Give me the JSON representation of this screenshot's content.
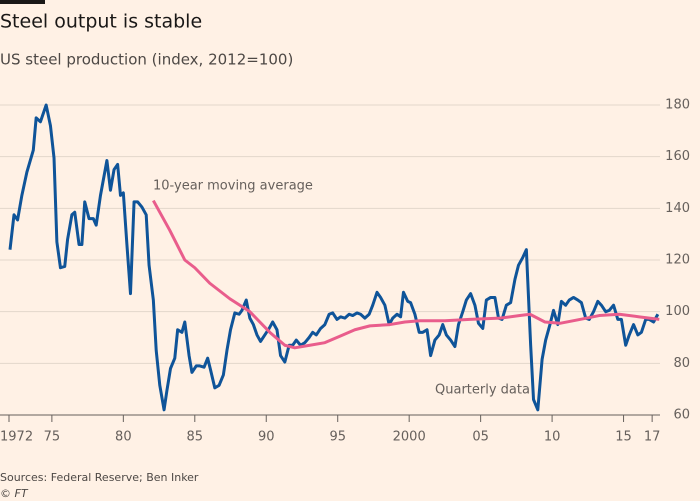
{
  "chart_data": {
    "type": "line",
    "title": "Steel output is stable",
    "subtitle": "US steel production (index, 2012=100)",
    "source": "Sources: Federal Reserve; Ben Inker",
    "credit": "© FT",
    "annotations": [
      "10-year moving average",
      "Quarterly data"
    ],
    "xlim": [
      1972,
      2017.9
    ],
    "xticks": [
      1972,
      {
        "value": 1975,
        "label": "75"
      },
      {
        "value": 1980,
        "label": "80"
      },
      {
        "value": 1985,
        "label": "85"
      },
      {
        "value": 1990,
        "label": "90"
      },
      {
        "value": 1995,
        "label": "95"
      },
      2000,
      {
        "value": 2005,
        "label": "05"
      },
      {
        "value": 2010,
        "label": "10"
      },
      {
        "value": 2015,
        "label": "15"
      },
      {
        "value": 2017,
        "label": "17"
      }
    ],
    "ylim": [
      60,
      180
    ],
    "yticks": [
      60,
      80,
      100,
      120,
      140,
      160,
      180
    ],
    "grid": true,
    "series": [
      {
        "name": "Quarterly data",
        "color": "#0f5499",
        "x": [
          1972.07,
          1972.35,
          1972.6,
          1972.9,
          1973.25,
          1973.7,
          1973.9,
          1974.2,
          1974.6,
          1974.9,
          1975.15,
          1975.35,
          1975.6,
          1975.9,
          1976.1,
          1976.4,
          1976.6,
          1976.9,
          1977.1,
          1977.3,
          1977.6,
          1977.9,
          1978.1,
          1978.4,
          1978.6,
          1978.85,
          1979.1,
          1979.35,
          1979.6,
          1979.8,
          1980.0,
          1980.25,
          1980.5,
          1980.75,
          1981.0,
          1981.3,
          1981.6,
          1981.8,
          1982.1,
          1982.3,
          1982.55,
          1982.85,
          1983.05,
          1983.3,
          1983.6,
          1983.8,
          1984.1,
          1984.3,
          1984.6,
          1984.8,
          1985.1,
          1985.35,
          1985.65,
          1985.9,
          1986.1,
          1986.4,
          1986.7,
          1987.0,
          1987.25,
          1987.5,
          1987.8,
          1988.1,
          1988.3,
          1988.6,
          1988.85,
          1989.1,
          1989.35,
          1989.6,
          1989.9,
          1990.2,
          1990.45,
          1990.75,
          1991.0,
          1991.3,
          1991.6,
          1991.85,
          1992.1,
          1992.4,
          1992.7,
          1993.0,
          1993.25,
          1993.5,
          1993.8,
          1994.1,
          1994.4,
          1994.65,
          1994.95,
          1995.2,
          1995.5,
          1995.8,
          1996.05,
          1996.35,
          1996.6,
          1996.9,
          1997.2,
          1997.45,
          1997.75,
          1998.0,
          1998.3,
          1998.6,
          1998.85,
          1999.15,
          1999.4,
          1999.6,
          1999.9,
          2000.1,
          2000.4,
          2000.7,
          2000.95,
          2001.25,
          2001.5,
          2001.8,
          2002.1,
          2002.35,
          2002.6,
          2002.9,
          2003.2,
          2003.45,
          2003.75,
          2004.0,
          2004.3,
          2004.6,
          2004.85,
          2005.15,
          2005.4,
          2005.7,
          2006.0,
          2006.25,
          2006.5,
          2006.8,
          2007.1,
          2007.4,
          2007.65,
          2007.95,
          2008.2,
          2008.5,
          2008.7,
          2009.0,
          2009.3,
          2009.55,
          2009.85,
          2010.1,
          2010.4,
          2010.65,
          2010.95,
          2011.2,
          2011.5,
          2011.8,
          2012.05,
          2012.35,
          2012.6,
          2012.9,
          2013.2,
          2013.45,
          2013.75,
          2014.0,
          2014.3,
          2014.6,
          2014.85,
          2015.15,
          2015.4,
          2015.7,
          2016.0,
          2016.25,
          2016.55,
          2016.8,
          2017.1,
          2017.4
        ],
        "values": [
          124,
          137.5,
          135.5,
          145,
          154,
          162.5,
          175,
          173.5,
          180,
          172,
          159.5,
          127,
          117,
          117.5,
          128,
          137.5,
          138.5,
          126,
          126,
          142.5,
          136,
          136,
          133.5,
          145,
          151,
          158.5,
          147,
          155,
          157,
          145,
          146,
          126,
          107,
          142.5,
          142.5,
          140.5,
          137.5,
          118,
          104.5,
          85,
          71.5,
          62,
          69.5,
          78,
          82,
          93,
          92,
          96,
          83,
          76.5,
          79,
          79,
          78.5,
          82,
          77.5,
          70.5,
          71.5,
          75.5,
          85,
          93,
          99.5,
          99,
          100.5,
          104.5,
          97.5,
          95,
          91,
          88.5,
          91,
          93.5,
          96,
          93,
          83,
          80.5,
          87,
          87,
          89,
          87,
          88,
          90,
          92,
          91,
          93.5,
          95,
          99,
          99.5,
          97,
          98,
          97.5,
          99,
          98.5,
          99.5,
          99,
          97.5,
          99,
          102.5,
          107.5,
          105.5,
          102.5,
          95,
          97.5,
          99,
          98,
          107.5,
          104,
          103.5,
          99,
          92,
          92,
          93,
          83,
          89,
          91,
          95,
          91,
          89,
          86.5,
          95,
          100,
          104.5,
          107,
          102.5,
          95.5,
          93.5,
          104.5,
          105.5,
          105.5,
          97.5,
          97,
          102.5,
          103.5,
          112.5,
          118,
          121,
          124,
          87,
          66,
          62,
          81.5,
          89,
          95,
          100.5,
          95,
          104,
          102.5,
          104.5,
          105.5,
          104.5,
          103.5,
          97.5,
          97,
          100,
          104,
          102.5,
          100,
          100.5,
          102.5,
          97,
          97,
          87,
          91,
          95,
          91,
          92,
          97,
          97,
          96,
          99
        ]
      },
      {
        "name": "10-year moving average",
        "color": "#e95d8c",
        "x": [
          1982.1,
          1983.25,
          1984.3,
          1985.0,
          1986.05,
          1987.45,
          1988.85,
          1990.25,
          1991.3,
          1992.0,
          1993.05,
          1994.1,
          1995.15,
          1996.2,
          1997.25,
          1998.65,
          1999.7,
          2000.75,
          2002.5,
          2004.25,
          2006.35,
          2007.75,
          2008.45,
          2009.5,
          2010.55,
          2011.95,
          2013.3,
          2014.7,
          2016.1,
          2017.5
        ],
        "values": [
          143,
          131.5,
          120,
          117,
          111,
          105,
          100,
          92,
          87,
          86,
          87,
          88,
          90.5,
          93,
          94.5,
          95,
          96,
          96.5,
          96.5,
          97,
          97.5,
          98.5,
          99,
          96,
          95.5,
          97,
          98.5,
          99,
          98,
          97
        ]
      }
    ]
  }
}
